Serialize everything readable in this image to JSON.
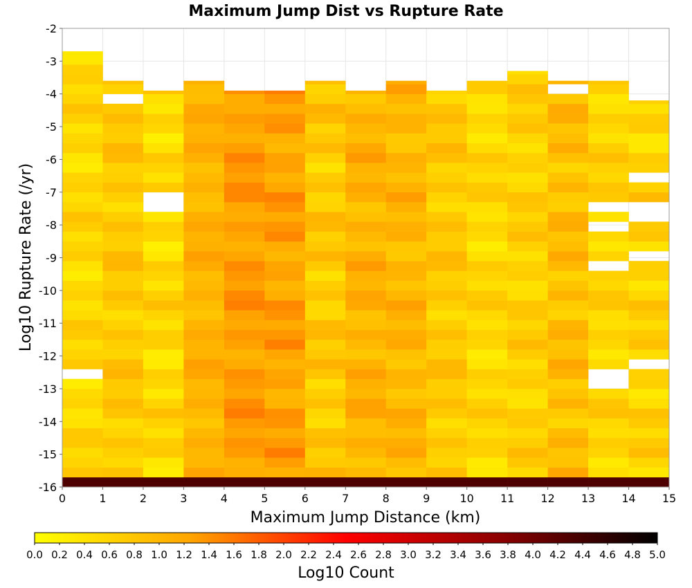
{
  "chart_data": {
    "type": "heatmap",
    "title": "Maximum Jump Dist vs Rupture Rate",
    "xlabel": "Maximum Jump Distance (km)",
    "ylabel": "Log10 Rupture Rate (/yr)",
    "colorbar_label": "Log10 Count",
    "xlim": [
      0,
      15
    ],
    "ylim": [
      -16,
      -2
    ],
    "x_ticks": [
      "0",
      "1",
      "2",
      "3",
      "4",
      "5",
      "6",
      "7",
      "8",
      "9",
      "10",
      "11",
      "12",
      "13",
      "14",
      "15"
    ],
    "y_ticks": [
      "-2",
      "-3",
      "-4",
      "-5",
      "-6",
      "-7",
      "-8",
      "-9",
      "-10",
      "-11",
      "-12",
      "-13",
      "-14",
      "-15",
      "-16"
    ],
    "color_range": [
      0,
      5
    ],
    "colorbar_ticks": [
      "0.0",
      "0.2",
      "0.4",
      "0.6",
      "0.8",
      "1.0",
      "1.2",
      "1.4",
      "1.6",
      "1.8",
      "2.0",
      "2.2",
      "2.4",
      "2.6",
      "2.8",
      "3.0",
      "3.2",
      "3.4",
      "3.6",
      "3.8",
      "4.0",
      "4.2",
      "4.4",
      "4.6",
      "4.8",
      "5.0"
    ],
    "colormap": [
      "#ffff00",
      "#ffa500",
      "#ff0000",
      "#8b0000",
      "#000000"
    ],
    "x_bin_width": 1,
    "y_bin_height": 0.3,
    "y_bin_start": -16,
    "bottom_row_note": "row at -16 is dark for all columns",
    "columns": [
      {
        "x": 0,
        "top": -2.7,
        "base": 0.55,
        "amp": 0.2,
        "phase": 0.0
      },
      {
        "x": 1,
        "top": -3.6,
        "base": 0.75,
        "amp": 0.2,
        "phase": 1.1
      },
      {
        "x": 2,
        "top": -3.9,
        "base": 0.55,
        "amp": 0.25,
        "phase": 2.2
      },
      {
        "x": 3,
        "top": -3.6,
        "base": 1.05,
        "amp": 0.15,
        "phase": 0.7
      },
      {
        "x": 4,
        "top": -3.9,
        "base": 1.3,
        "amp": 0.15,
        "phase": 1.9
      },
      {
        "x": 5,
        "top": -3.9,
        "base": 1.25,
        "amp": 0.2,
        "phase": 2.8
      },
      {
        "x": 6,
        "top": -3.6,
        "base": 0.75,
        "amp": 0.25,
        "phase": 0.3
      },
      {
        "x": 7,
        "top": -3.9,
        "base": 1.05,
        "amp": 0.2,
        "phase": 1.5
      },
      {
        "x": 8,
        "top": -3.6,
        "base": 1.0,
        "amp": 0.2,
        "phase": 2.5
      },
      {
        "x": 9,
        "top": -3.9,
        "base": 0.75,
        "amp": 0.2,
        "phase": 0.9
      },
      {
        "x": 10,
        "top": -3.6,
        "base": 0.55,
        "amp": 0.2,
        "phase": 2.0
      },
      {
        "x": 11,
        "top": -3.3,
        "base": 0.65,
        "amp": 0.2,
        "phase": 3.0
      },
      {
        "x": 12,
        "top": -3.6,
        "base": 0.9,
        "amp": 0.25,
        "phase": 0.5
      },
      {
        "x": 13,
        "top": -3.6,
        "base": 0.6,
        "amp": 0.2,
        "phase": 1.7
      },
      {
        "x": 14,
        "top": -4.2,
        "base": 0.6,
        "amp": 0.25,
        "phase": 2.6
      }
    ],
    "empty_cells": [
      {
        "x": 0,
        "y": -12.7
      },
      {
        "x": 1,
        "y": -4.3
      },
      {
        "x": 2,
        "y": -7.3
      },
      {
        "x": 2,
        "y": -7.6
      },
      {
        "x": 12,
        "y": -4.0
      },
      {
        "x": 13,
        "y": -7.6
      },
      {
        "x": 13,
        "y": -8.2
      },
      {
        "x": 13,
        "y": -9.4
      },
      {
        "x": 13,
        "y": -12.7
      },
      {
        "x": 13,
        "y": -13.0
      },
      {
        "x": 14,
        "y": -6.7
      },
      {
        "x": 14,
        "y": -7.6
      },
      {
        "x": 14,
        "y": -7.9
      },
      {
        "x": 14,
        "y": -9.1
      },
      {
        "x": 14,
        "y": -12.4
      }
    ]
  }
}
